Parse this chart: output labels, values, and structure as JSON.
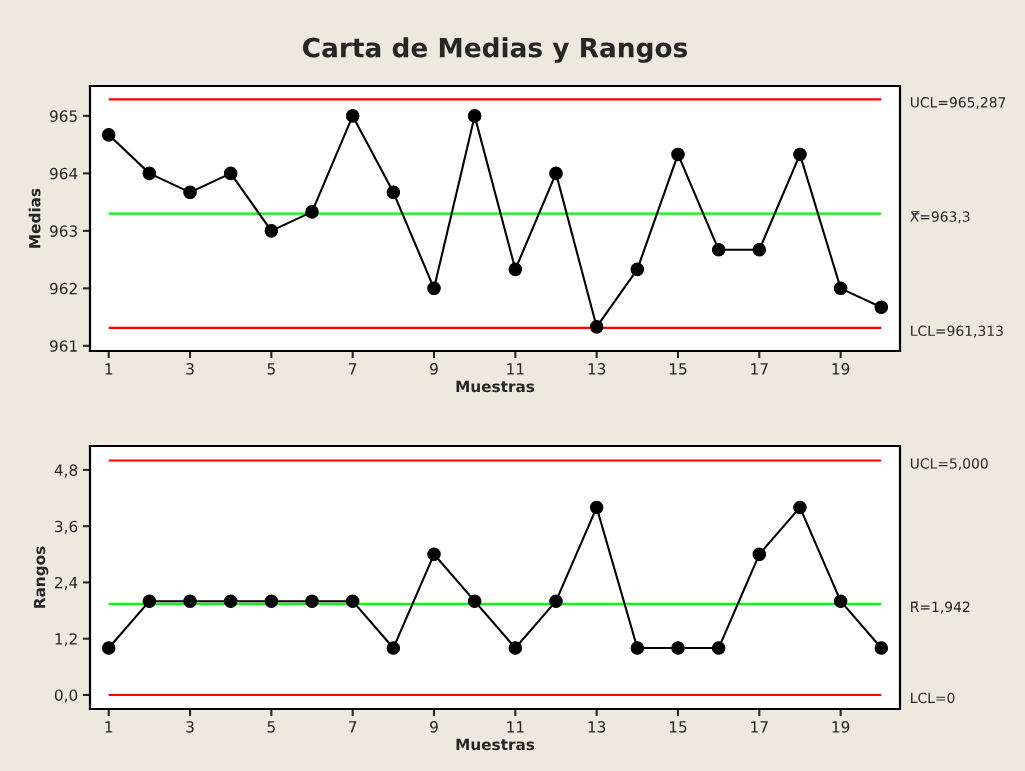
{
  "chart_data": [
    {
      "type": "line",
      "title": "Carta de Medias y Rangos",
      "xlabel": "Muestras",
      "ylabel": "Medias",
      "x": [
        1,
        2,
        3,
        4,
        5,
        6,
        7,
        8,
        9,
        10,
        11,
        12,
        13,
        14,
        15,
        16,
        17,
        18,
        19,
        20
      ],
      "series": [
        {
          "color": "#000000",
          "values": [
            964.67,
            964.0,
            963.67,
            964.0,
            963.0,
            963.33,
            965.0,
            963.67,
            962.0,
            965.0,
            962.33,
            964.0,
            961.33,
            962.33,
            964.33,
            962.67,
            962.67,
            964.33,
            962.0,
            961.67
          ]
        }
      ],
      "xlim": [
        0.54,
        20.46
      ],
      "xticks": [
        1,
        3,
        5,
        7,
        9,
        11,
        13,
        15,
        17,
        19
      ],
      "ylim": [
        960.91,
        965.52
      ],
      "yticks": [
        961,
        962,
        963,
        964,
        965
      ],
      "ref_lines": [
        {
          "axis": "y",
          "value": 965.287,
          "label": "UCL=965,287",
          "color": "#ff0000"
        },
        {
          "axis": "y",
          "value": 963.3,
          "label": "X̿=963,3",
          "color": "#00ff00"
        },
        {
          "axis": "y",
          "value": 961.313,
          "label": "LCL=961,313",
          "color": "#ff0000"
        }
      ],
      "marker": "circle",
      "line_style": "solid",
      "grid": false,
      "legend": false
    },
    {
      "type": "line",
      "xlabel": "Muestras",
      "ylabel": "Rangos",
      "x": [
        1,
        2,
        3,
        4,
        5,
        6,
        7,
        8,
        9,
        10,
        11,
        12,
        13,
        14,
        15,
        16,
        17,
        18,
        19,
        20
      ],
      "series": [
        {
          "color": "#000000",
          "values": [
            1,
            2,
            2,
            2,
            2,
            2,
            2,
            1,
            3,
            2,
            1,
            2,
            4,
            1,
            1,
            1,
            3,
            4,
            2,
            1
          ]
        }
      ],
      "xlim": [
        0.54,
        20.46
      ],
      "xticks": [
        1,
        3,
        5,
        7,
        9,
        11,
        13,
        15,
        17,
        19
      ],
      "ylim": [
        -0.3,
        5.31
      ],
      "yticks": [
        {
          "value": 0,
          "label": "0,0"
        },
        {
          "value": 1.2,
          "label": "1,2"
        },
        {
          "value": 2.4,
          "label": "2,4"
        },
        {
          "value": 3.6,
          "label": "3,6"
        },
        {
          "value": 4.8,
          "label": "4,8"
        }
      ],
      "ref_lines": [
        {
          "axis": "y",
          "value": 5.0,
          "label": "UCL=5,000",
          "color": "#ff0000"
        },
        {
          "axis": "y",
          "value": 1.942,
          "label": "R̄=1,942",
          "color": "#00ff00"
        },
        {
          "axis": "y",
          "value": 0,
          "label": "LCL=0",
          "color": "#ff0000"
        }
      ],
      "marker": "circle",
      "line_style": "solid",
      "grid": false,
      "legend": false
    }
  ]
}
